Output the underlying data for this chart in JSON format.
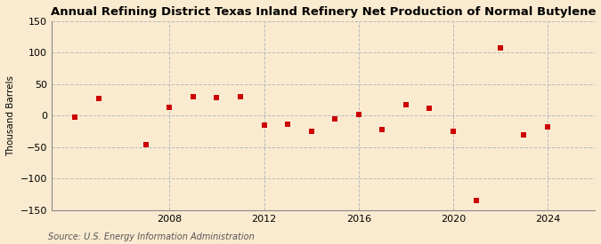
{
  "title": "Annual Refining District Texas Inland Refinery Net Production of Normal Butylene",
  "ylabel": "Thousand Barrels",
  "source": "Source: U.S. Energy Information Administration",
  "background_color": "#faebd0",
  "plot_background_color": "#faebd0",
  "marker_color": "#cc0000",
  "grid_color": "#bbbbbb",
  "years": [
    2004,
    2005,
    2007,
    2008,
    2009,
    2010,
    2011,
    2012,
    2013,
    2014,
    2015,
    2016,
    2017,
    2018,
    2019,
    2020,
    2021,
    2022,
    2023,
    2024
  ],
  "values": [
    -2,
    27,
    -46,
    13,
    30,
    28,
    30,
    -15,
    -13,
    -25,
    -5,
    2,
    -22,
    17,
    12,
    -25,
    -135,
    108,
    -30,
    -18
  ],
  "ylim": [
    -150,
    150
  ],
  "yticks": [
    -150,
    -100,
    -50,
    0,
    50,
    100,
    150
  ],
  "xticks": [
    2008,
    2012,
    2016,
    2020,
    2024
  ],
  "xlim": [
    2003,
    2026
  ],
  "title_fontsize": 9.5,
  "label_fontsize": 7.5,
  "tick_fontsize": 8,
  "source_fontsize": 7
}
